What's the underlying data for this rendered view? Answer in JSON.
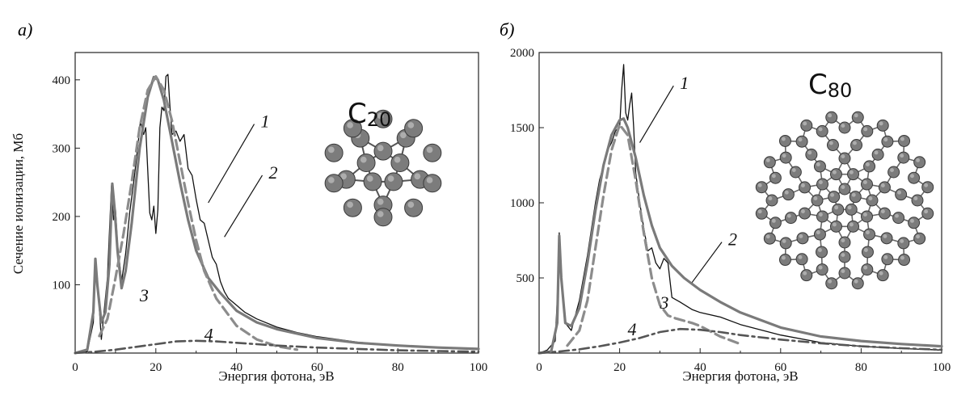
{
  "chart_data": [
    {
      "type": "line",
      "panel_label": "а)",
      "molecule": {
        "symbol": "C",
        "subscript": "20",
        "atoms": 20
      },
      "xlabel": "Энергия фотона, эВ",
      "ylabel": "Сечение ионизации, Мб",
      "xlim": [
        0,
        100
      ],
      "ylim": [
        0,
        440
      ],
      "xticks": [
        0,
        20,
        40,
        60,
        80,
        100
      ],
      "yticks": [
        100,
        200,
        300,
        400
      ],
      "grid": false,
      "series": [
        {
          "label": "1",
          "style": "thin-solid",
          "color": "#111111",
          "x": [
            0,
            3,
            4.5,
            5,
            5.5,
            6.5,
            8,
            9,
            9.5,
            10,
            10.5,
            11.5,
            12.5,
            13.5,
            14.5,
            15.5,
            16.2,
            17,
            17.5,
            18.5,
            19,
            19.5,
            20,
            20.5,
            21,
            21.5,
            22,
            22.5,
            23,
            23.5,
            24,
            25,
            26,
            27,
            28,
            29,
            30,
            31,
            32,
            33,
            34,
            35,
            36,
            37,
            38,
            40,
            42,
            45,
            50,
            55,
            60,
            70,
            80,
            90,
            100
          ],
          "y": [
            0,
            2,
            45,
            138,
            110,
            20,
            110,
            245,
            195,
            210,
            160,
            105,
            145,
            205,
            250,
            300,
            340,
            320,
            330,
            205,
            195,
            215,
            175,
            210,
            330,
            360,
            355,
            405,
            408,
            360,
            320,
            325,
            310,
            320,
            270,
            260,
            225,
            195,
            190,
            165,
            140,
            130,
            105,
            90,
            80,
            70,
            60,
            50,
            38,
            30,
            24,
            16,
            11,
            8,
            6
          ]
        },
        {
          "label": "2",
          "style": "thick-solid",
          "color": "#7a7a7a",
          "x": [
            0,
            3,
            4.5,
            5,
            5.5,
            6.5,
            7.5,
            8.5,
            9.2,
            9.8,
            10.5,
            11.5,
            12.5,
            14,
            16,
            18,
            19.5,
            20.5,
            22,
            24,
            26,
            28,
            30,
            33,
            36,
            40,
            45,
            50,
            60,
            70,
            80,
            90,
            100
          ],
          "y": [
            0,
            5,
            60,
            138,
            100,
            45,
            60,
            130,
            248,
            210,
            150,
            95,
            120,
            190,
            300,
            375,
            404,
            400,
            370,
            310,
            250,
            195,
            150,
            110,
            88,
            62,
            45,
            35,
            22,
            15,
            11,
            8,
            6
          ]
        },
        {
          "label": "3",
          "style": "dashed",
          "color": "#8c8c8c",
          "x": [
            6,
            8,
            10,
            12,
            14,
            16,
            18,
            20,
            22,
            24,
            26,
            28,
            30,
            32,
            35,
            40,
            45,
            50,
            55
          ],
          "y": [
            25,
            50,
            110,
            175,
            250,
            330,
            385,
            405,
            385,
            340,
            280,
            220,
            165,
            120,
            80,
            40,
            20,
            10,
            5
          ]
        },
        {
          "label": "4",
          "style": "dash-dot",
          "color": "#555555",
          "x": [
            0,
            5,
            10,
            15,
            20,
            25,
            30,
            35,
            40,
            45,
            50,
            60,
            70,
            80,
            90,
            100
          ],
          "y": [
            0,
            2,
            5,
            9,
            13,
            17,
            18,
            17,
            15,
            13,
            11,
            8,
            6,
            4,
            3,
            2
          ]
        }
      ],
      "curve_labels": [
        {
          "text": "1",
          "x": 46,
          "y": 340,
          "target_x": 33,
          "target_y": 220
        },
        {
          "text": "2",
          "x": 48,
          "y": 265,
          "target_x": 37,
          "target_y": 170
        },
        {
          "text": "3",
          "x": 16,
          "y": 85
        },
        {
          "text": "4",
          "x": 32,
          "y": 28
        }
      ]
    },
    {
      "type": "line",
      "panel_label": "б)",
      "molecule": {
        "symbol": "C",
        "subscript": "80",
        "atoms": 80
      },
      "xlabel": "Энергия фотона, эВ",
      "ylabel": "",
      "xlim": [
        0,
        100
      ],
      "ylim": [
        0,
        2000
      ],
      "xticks": [
        0,
        20,
        40,
        60,
        80,
        100
      ],
      "yticks": [
        500,
        1000,
        1500,
        2000
      ],
      "grid": false,
      "series": [
        {
          "label": "1",
          "style": "thin-solid",
          "color": "#111111",
          "x": [
            0,
            2,
            3,
            4,
            4.5,
            5,
            5.5,
            6.5,
            8,
            10,
            12,
            14,
            15,
            16,
            17,
            18,
            19,
            20,
            20.5,
            21,
            21.5,
            22,
            22.5,
            23,
            23.5,
            24,
            25,
            26,
            27,
            28,
            29,
            30,
            31,
            32,
            33,
            35,
            38,
            40,
            45,
            50,
            60,
            70,
            80,
            90,
            100
          ],
          "y": [
            0,
            20,
            50,
            80,
            350,
            800,
            500,
            200,
            150,
            350,
            650,
            1000,
            1150,
            1250,
            1350,
            1400,
            1480,
            1500,
            1750,
            1920,
            1600,
            1550,
            1650,
            1730,
            1500,
            1200,
            1000,
            830,
            680,
            700,
            600,
            560,
            630,
            600,
            370,
            340,
            290,
            270,
            240,
            190,
            120,
            70,
            45,
            30,
            20
          ]
        },
        {
          "label": "2",
          "style": "thick-solid",
          "color": "#7a7a7a",
          "x": [
            0,
            3,
            4.5,
            5,
            5.5,
            6.5,
            8,
            10,
            12,
            14,
            16,
            18,
            20,
            21,
            22,
            24,
            26,
            28,
            30,
            33,
            36,
            40,
            45,
            50,
            60,
            70,
            80,
            90,
            100
          ],
          "y": [
            0,
            10,
            200,
            780,
            500,
            200,
            180,
            300,
            600,
            950,
            1250,
            1450,
            1550,
            1560,
            1500,
            1300,
            1050,
            850,
            700,
            580,
            500,
            420,
            340,
            270,
            170,
            110,
            80,
            60,
            45
          ]
        },
        {
          "label": "3",
          "style": "dashed",
          "color": "#8c8c8c",
          "x": [
            7,
            10,
            12,
            14,
            16,
            18,
            20,
            22,
            24,
            26,
            28,
            30,
            32,
            34,
            36,
            38,
            40,
            45,
            50
          ],
          "y": [
            50,
            150,
            350,
            700,
            1050,
            1350,
            1520,
            1450,
            1150,
            800,
            500,
            320,
            250,
            230,
            215,
            200,
            180,
            110,
            60
          ]
        },
        {
          "label": "4",
          "style": "dash-dot",
          "color": "#555555",
          "x": [
            0,
            5,
            10,
            15,
            20,
            25,
            30,
            35,
            40,
            45,
            50,
            60,
            70,
            80,
            90,
            100
          ],
          "y": [
            0,
            10,
            25,
            45,
            70,
            100,
            140,
            160,
            155,
            140,
            120,
            90,
            65,
            45,
            32,
            22
          ]
        }
      ],
      "curve_labels": [
        {
          "text": "1",
          "x": 35,
          "y": 1800,
          "target_x": 25,
          "target_y": 1400
        },
        {
          "text": "2",
          "x": 47,
          "y": 760,
          "target_x": 38,
          "target_y": 470
        },
        {
          "text": "3",
          "x": 30,
          "y": 340
        },
        {
          "text": "4",
          "x": 22,
          "y": 160
        }
      ]
    }
  ]
}
